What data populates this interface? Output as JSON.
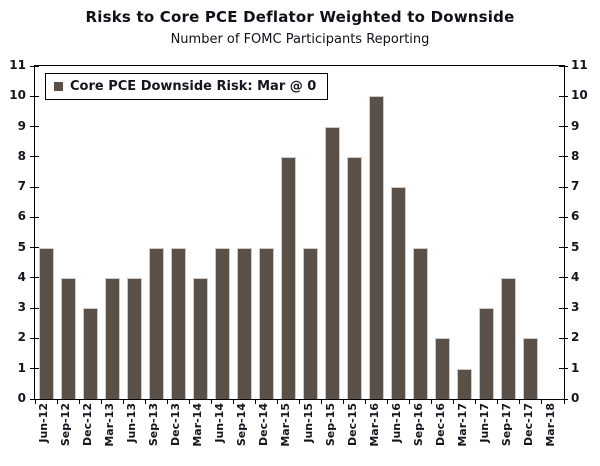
{
  "title": "Risks to Core PCE Deflator Weighted to Downside",
  "subtitle": "Number of FOMC Participants Reporting",
  "legend": {
    "label": "Core PCE Downside Risk: Mar @ 0",
    "marker": "filled-square"
  },
  "colors": {
    "bar": "#5a5047",
    "bar_edge": "#cfcac5",
    "axis": "#000000",
    "text": "#15151f"
  },
  "chart_data": {
    "type": "bar",
    "title": "Risks to Core PCE Deflator Weighted to Downside",
    "subtitle": "Number of FOMC Participants Reporting",
    "series_name": "Core PCE Downside Risk",
    "latest_value_label": "Mar @ 0",
    "categories": [
      "Jun-12",
      "Sep-12",
      "Dec-12",
      "Mar-13",
      "Jun-13",
      "Sep-13",
      "Dec-13",
      "Mar-14",
      "Jun-14",
      "Sep-14",
      "Dec-14",
      "Mar-15",
      "Jun-15",
      "Sep-15",
      "Dec-15",
      "Mar-16",
      "Jun-16",
      "Sep-16",
      "Dec-16",
      "Mar-17",
      "Jun-17",
      "Sep-17",
      "Dec-17",
      "Mar-18"
    ],
    "values": [
      5,
      4,
      3,
      4,
      4,
      5,
      5,
      4,
      5,
      5,
      5,
      8,
      5,
      9,
      8,
      10,
      7,
      5,
      2,
      1,
      3,
      4,
      2,
      0
    ],
    "xlabel": "",
    "ylabel": "",
    "ylim": [
      0,
      11
    ],
    "yticks": [
      0,
      1,
      2,
      3,
      4,
      5,
      6,
      7,
      8,
      9,
      10,
      11
    ],
    "dual_y_axis": true,
    "grid": false,
    "legend_position": "top-left",
    "bar_color": "#5a5047"
  }
}
